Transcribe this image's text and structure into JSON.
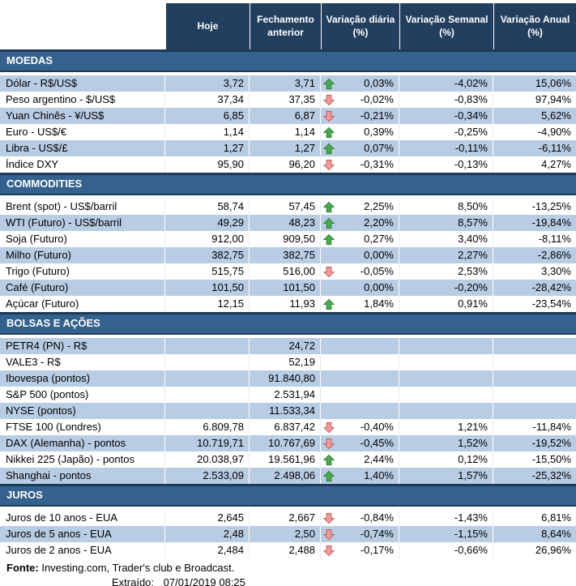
{
  "chart_data": {
    "type": "table",
    "columns": [
      "",
      "Hoje",
      "Fechamento anterior",
      "Variação diária (%)",
      "Variação Semanal (%)",
      "Variação Anual (%)"
    ],
    "sections": [
      {
        "title": "MOEDAS",
        "rows": [
          {
            "label": "Dólar - R$/US$",
            "hoje": "3,72",
            "fechamento": "3,71",
            "arrow": "up",
            "diaria": "0,03%",
            "semanal": "-4,02%",
            "anual": "15,06%",
            "shaded": true
          },
          {
            "label": "Peso argentino - $/US$",
            "hoje": "37,34",
            "fechamento": "37,35",
            "arrow": "down",
            "diaria": "-0,02%",
            "semanal": "-0,83%",
            "anual": "97,94%",
            "shaded": false
          },
          {
            "label": "Yuan Chinês - ¥/US$",
            "hoje": "6,85",
            "fechamento": "6,87",
            "arrow": "down",
            "diaria": "-0,21%",
            "semanal": "-0,34%",
            "anual": "5,62%",
            "shaded": true
          },
          {
            "label": "Euro - US$/€",
            "hoje": "1,14",
            "fechamento": "1,14",
            "arrow": "up",
            "diaria": "0,39%",
            "semanal": "-0,25%",
            "anual": "-4,90%",
            "shaded": false
          },
          {
            "label": "Libra - US$/£",
            "hoje": "1,27",
            "fechamento": "1,27",
            "arrow": "up",
            "diaria": "0,07%",
            "semanal": "-0,11%",
            "anual": "-6,11%",
            "shaded": true
          },
          {
            "label": "Índice DXY",
            "hoje": "95,90",
            "fechamento": "96,20",
            "arrow": "down",
            "diaria": "-0,31%",
            "semanal": "-0,13%",
            "anual": "4,27%",
            "shaded": false
          }
        ]
      },
      {
        "title": "COMMODITIES",
        "rows": [
          {
            "label": "Brent (spot) - US$/barril",
            "hoje": "58,74",
            "fechamento": "57,45",
            "arrow": "up",
            "diaria": "2,25%",
            "semanal": "8,50%",
            "anual": "-13,25%",
            "shaded": false
          },
          {
            "label": "WTI (Futuro) - US$/barril",
            "hoje": "49,29",
            "fechamento": "48,23",
            "arrow": "up",
            "diaria": "2,20%",
            "semanal": "8,57%",
            "anual": "-19,84%",
            "shaded": true
          },
          {
            "label": "Soja (Futuro)",
            "hoje": "912,00",
            "fechamento": "909,50",
            "arrow": "up",
            "diaria": "0,27%",
            "semanal": "3,40%",
            "anual": "-8,11%",
            "shaded": false
          },
          {
            "label": "Milho (Futuro)",
            "hoje": "382,75",
            "fechamento": "382,75",
            "arrow": "none",
            "diaria": "0,00%",
            "semanal": "2,27%",
            "anual": "-2,86%",
            "shaded": true
          },
          {
            "label": "Trigo (Futuro)",
            "hoje": "515,75",
            "fechamento": "516,00",
            "arrow": "down",
            "diaria": "-0,05%",
            "semanal": "2,53%",
            "anual": "3,30%",
            "shaded": false
          },
          {
            "label": "Café (Futuro)",
            "hoje": "101,50",
            "fechamento": "101,50",
            "arrow": "none",
            "diaria": "0,00%",
            "semanal": "-0,20%",
            "anual": "-28,42%",
            "shaded": true
          },
          {
            "label": "Açúcar (Futuro)",
            "hoje": "12,15",
            "fechamento": "11,93",
            "arrow": "up",
            "diaria": "1,84%",
            "semanal": "0,91%",
            "anual": "-23,54%",
            "shaded": false
          }
        ]
      },
      {
        "title": "BOLSAS E AÇÕES",
        "rows": [
          {
            "label": "PETR4 (PN) - R$",
            "hoje": "",
            "fechamento": "24,72",
            "arrow": "none",
            "diaria": "",
            "semanal": "",
            "anual": "",
            "shaded": true
          },
          {
            "label": "VALE3 - R$",
            "hoje": "",
            "fechamento": "52,19",
            "arrow": "none",
            "diaria": "",
            "semanal": "",
            "anual": "",
            "shaded": false
          },
          {
            "label": "Ibovespa (pontos)",
            "hoje": "",
            "fechamento": "91.840,80",
            "arrow": "none",
            "diaria": "",
            "semanal": "",
            "anual": "",
            "shaded": true
          },
          {
            "label": "S&P 500 (pontos)",
            "hoje": "",
            "fechamento": "2.531,94",
            "arrow": "none",
            "diaria": "",
            "semanal": "",
            "anual": "",
            "shaded": false
          },
          {
            "label": "NYSE (pontos)",
            "hoje": "",
            "fechamento": "11.533,34",
            "arrow": "none",
            "diaria": "",
            "semanal": "",
            "anual": "",
            "shaded": true
          },
          {
            "label": "FTSE 100 (Londres)",
            "hoje": "6.809,78",
            "fechamento": "6.837,42",
            "arrow": "down",
            "diaria": "-0,40%",
            "semanal": "1,21%",
            "anual": "-11,84%",
            "shaded": false
          },
          {
            "label": "DAX (Alemanha) - pontos",
            "hoje": "10.719,71",
            "fechamento": "10.767,69",
            "arrow": "down",
            "diaria": "-0,45%",
            "semanal": "1,52%",
            "anual": "-19,52%",
            "shaded": true
          },
          {
            "label": "Nikkei 225 (Japão) - pontos",
            "hoje": "20.038,97",
            "fechamento": "19.561,96",
            "arrow": "up",
            "diaria": "2,44%",
            "semanal": "0,12%",
            "anual": "-15,50%",
            "shaded": false
          },
          {
            "label": "Shanghai - pontos",
            "hoje": "2.533,09",
            "fechamento": "2.498,06",
            "arrow": "up",
            "diaria": "1,40%",
            "semanal": "1,57%",
            "anual": "-25,32%",
            "shaded": true
          }
        ]
      },
      {
        "title": "JUROS",
        "rows": [
          {
            "label": "Juros de 10 anos - EUA",
            "hoje": "2,645",
            "fechamento": "2,667",
            "arrow": "down",
            "diaria": "-0,84%",
            "semanal": "-1,43%",
            "anual": "6,81%",
            "shaded": false
          },
          {
            "label": "Juros de 5 anos - EUA",
            "hoje": "2,48",
            "fechamento": "2,50",
            "arrow": "down",
            "diaria": "-0,74%",
            "semanal": "-1,15%",
            "anual": "8,64%",
            "shaded": true
          },
          {
            "label": "Juros de 2 anos - EUA",
            "hoje": "2,484",
            "fechamento": "2,488",
            "arrow": "down",
            "diaria": "-0,17%",
            "semanal": "-0,66%",
            "anual": "26,96%",
            "shaded": false
          }
        ]
      }
    ]
  },
  "footer": {
    "fonte_label": "Fonte:",
    "fonte_text": "Investing.com, Trader's club e Broadcast.",
    "extraido_label": "Extraído:",
    "extraido_value": "07/01/2019 08:25"
  },
  "colors": {
    "header_bg": "#233F5F",
    "section_bg": "#34618E",
    "section_border": "#1D3A58",
    "stripe": "#B8CCE4",
    "up_arrow_fill": "#4BA84F",
    "up_arrow_border": "#2E7D36",
    "down_arrow_fill": "#F09B9B",
    "down_arrow_border": "#C0504D"
  }
}
